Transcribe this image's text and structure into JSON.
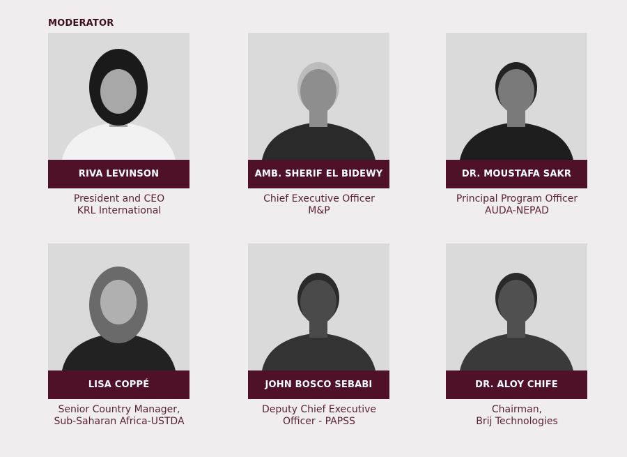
{
  "section_label": "MODERATOR",
  "colors": {
    "band": "#4e1127",
    "caption": "#5a1f35",
    "background": "#efedee"
  },
  "speakers": [
    {
      "name": "RIVA LEVINSON",
      "line1": "President and CEO",
      "line2": "KRL International"
    },
    {
      "name": "AMB. SHERIF EL BIDEWY",
      "line1": "Chief Executive Officer",
      "line2": "M&P"
    },
    {
      "name": "DR. MOUSTAFA SAKR",
      "line1": "Principal Program Officer",
      "line2": "AUDA-NEPAD"
    },
    {
      "name": "LISA COPPÉ",
      "line1": "Senior Country Manager,",
      "line2": "Sub-Saharan Africa-USTDA"
    },
    {
      "name": "JOHN BOSCO SEBABI",
      "line1": "Deputy Chief Executive",
      "line2": "Officer - PAPSS"
    },
    {
      "name": "DR. ALOY CHIFE",
      "line1": "Chairman,",
      "line2": "Brij Technologies"
    }
  ]
}
